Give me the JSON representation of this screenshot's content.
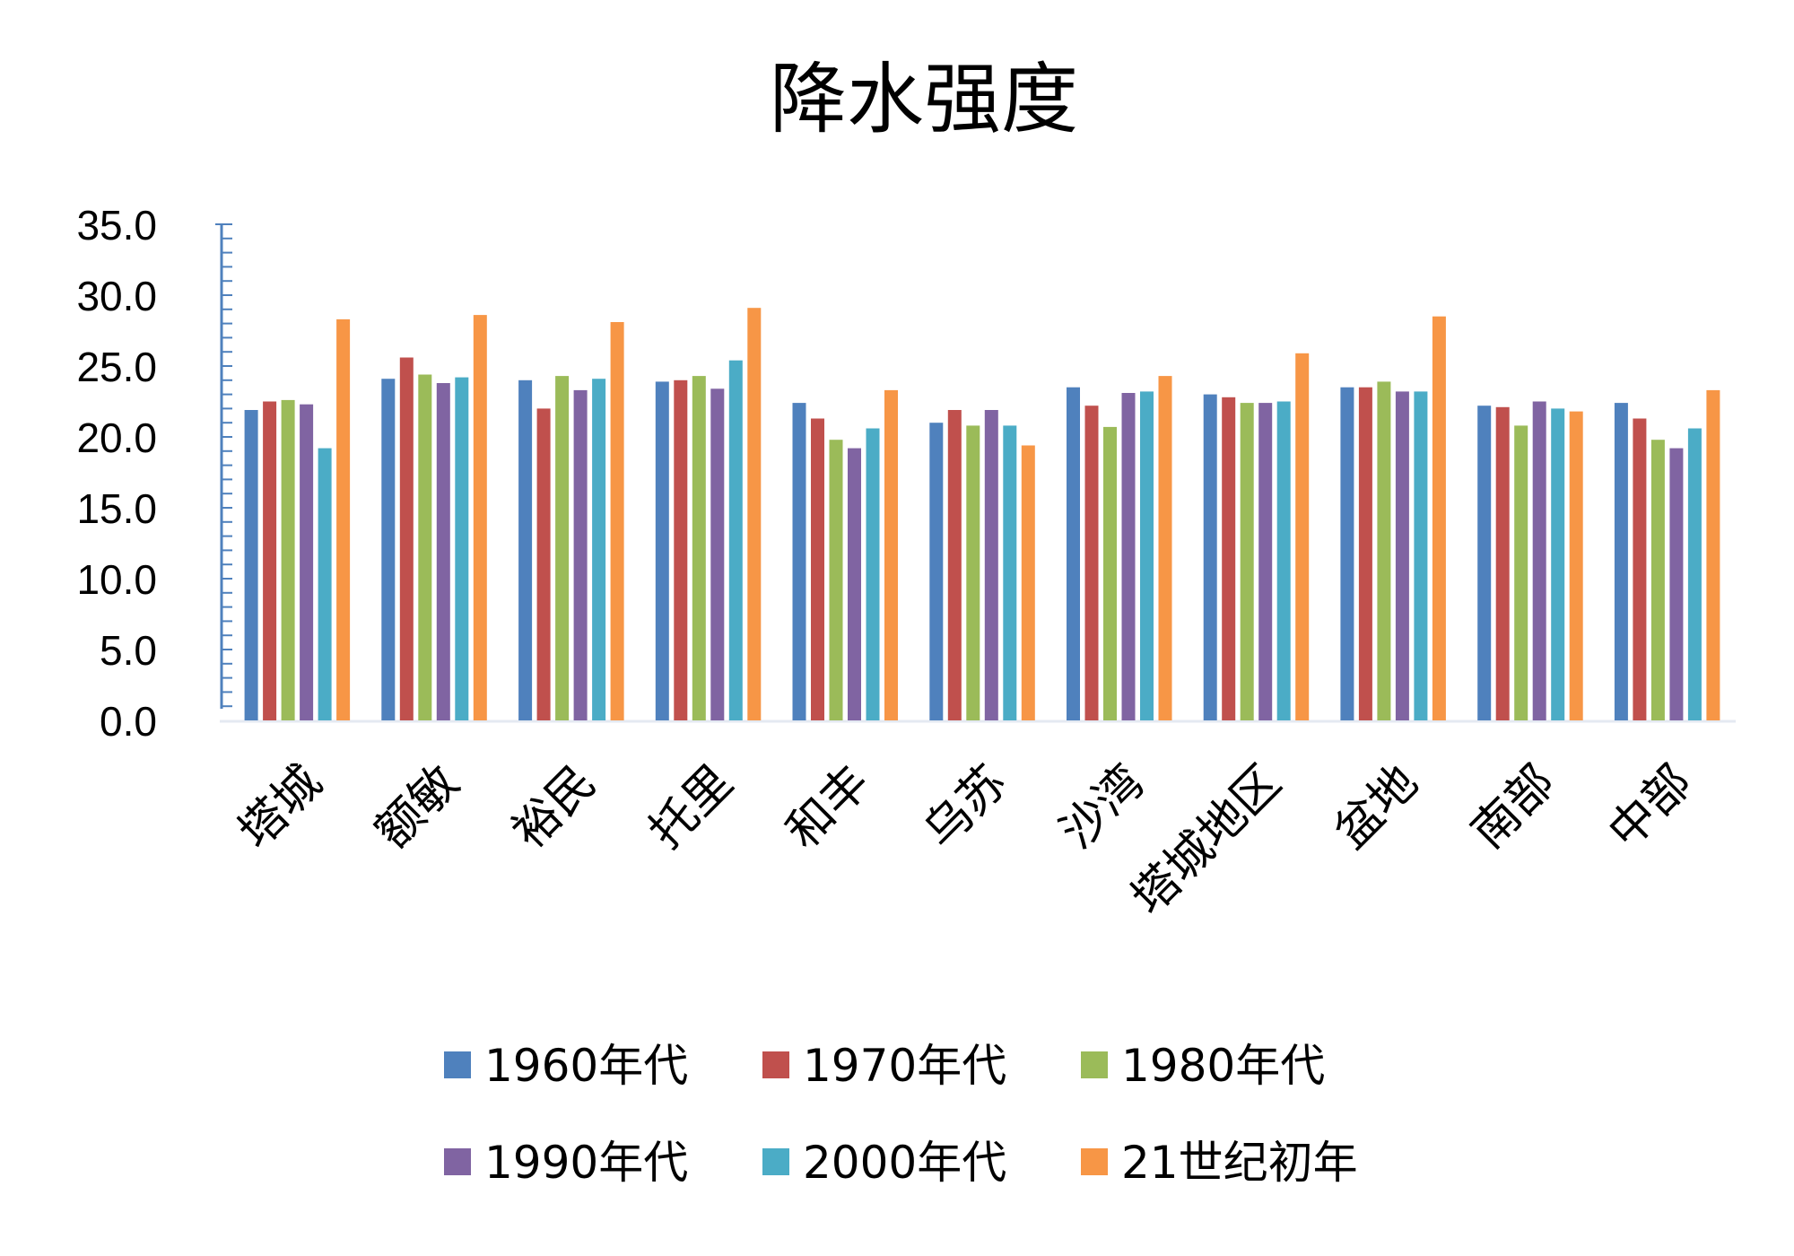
{
  "chart_data": {
    "type": "bar",
    "title": "降水强度",
    "xlabel": "",
    "ylabel": "",
    "ylim": [
      0,
      35
    ],
    "yticks": [
      "0.0",
      "5.0",
      "10.0",
      "15.0",
      "20.0",
      "25.0",
      "30.0",
      "35.0"
    ],
    "categories": [
      "塔城",
      "额敏",
      "裕民",
      "托里",
      "和丰",
      "乌苏",
      "沙湾",
      "塔城地区",
      "盆地",
      "南部",
      "中部"
    ],
    "series": [
      {
        "name": "1960年代",
        "color": "#4F81BD",
        "values": [
          21.9,
          24.1,
          24.0,
          23.9,
          22.4,
          21.0,
          23.5,
          23.0,
          23.5,
          22.2,
          22.4
        ]
      },
      {
        "name": "1970年代",
        "color": "#C0504D",
        "values": [
          22.5,
          25.6,
          22.0,
          24.0,
          21.3,
          21.9,
          22.2,
          22.8,
          23.5,
          22.1,
          21.3
        ]
      },
      {
        "name": "1980年代",
        "color": "#9BBB59",
        "values": [
          22.6,
          24.4,
          24.3,
          24.3,
          19.8,
          20.8,
          20.7,
          22.4,
          23.9,
          20.8,
          19.8
        ]
      },
      {
        "name": "1990年代",
        "color": "#8064A2",
        "values": [
          22.3,
          23.8,
          23.3,
          23.4,
          19.2,
          21.9,
          23.1,
          22.4,
          23.2,
          22.5,
          19.2
        ]
      },
      {
        "name": "2000年代",
        "color": "#4BACC6",
        "values": [
          19.2,
          24.2,
          24.1,
          25.4,
          20.6,
          20.8,
          23.2,
          22.5,
          23.2,
          22.0,
          20.6
        ]
      },
      {
        "name": "21世纪初年",
        "color": "#F79646",
        "values": [
          28.3,
          28.6,
          28.1,
          29.1,
          23.3,
          19.4,
          24.3,
          25.9,
          28.5,
          21.8,
          23.3
        ]
      }
    ],
    "legend_position": "bottom",
    "grid": false,
    "axis_color": "#4F81BD"
  }
}
